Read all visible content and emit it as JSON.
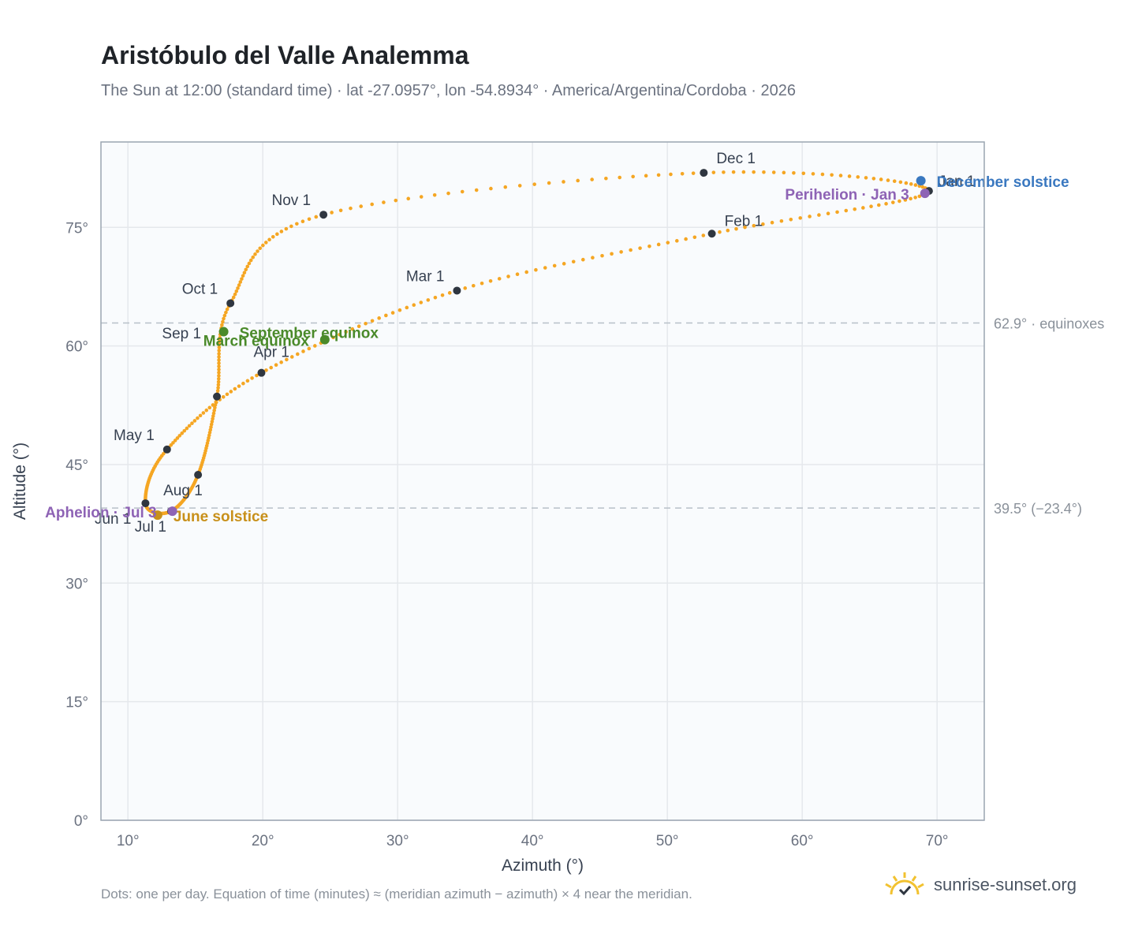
{
  "header": {
    "title": "Aristóbulo del Valle Analemma",
    "subtitle": "The Sun at 12:00 (standard time) · lat -27.0957°, lon -54.8934° · America/Argentina/Cordoba · 2026"
  },
  "footer": {
    "note": "Dots: one per day. Equation of time (minutes) ≈ (meridian azimuth − azimuth) × 4 near the meridian.",
    "brand": "sunrise-sunset.org",
    "brand_icon": "sun-horizon-icon"
  },
  "colors": {
    "curve": "#f5a623",
    "month_marker": "#2f3640",
    "equinox": "#4a8a2a",
    "june_solstice": "#c8901a",
    "december_solstice": "#3a78c0",
    "apsis": "#8e63b5",
    "grid": "#e5e8ec",
    "plot_bg": "#f9fbfd",
    "frame": "#9aa5b1",
    "reference_line": "#b8c0c8"
  },
  "chart_data": {
    "type": "scatter",
    "title": "Aristóbulo del Valle Analemma",
    "xlabel": "Azimuth (°)",
    "ylabel": "Altitude (°)",
    "xlim": [
      8,
      73.5
    ],
    "ylim": [
      0,
      85.8
    ],
    "x_ticks": [
      10,
      20,
      30,
      40,
      50,
      60,
      70
    ],
    "x_tick_labels": [
      "10°",
      "20°",
      "30°",
      "40°",
      "50°",
      "60°",
      "70°"
    ],
    "y_ticks": [
      0,
      15,
      30,
      45,
      60,
      75
    ],
    "y_tick_labels": [
      "0°",
      "15°",
      "30°",
      "45°",
      "60°",
      "75°"
    ],
    "grid": true,
    "legend": "none",
    "month_markers": [
      {
        "label": "Jan 1",
        "date": "2026-01-01",
        "x": 69.4,
        "y": 79.6
      },
      {
        "label": "Feb 1",
        "date": "2026-02-01",
        "x": 53.3,
        "y": 74.2
      },
      {
        "label": "Mar 1",
        "date": "2026-03-01",
        "x": 34.4,
        "y": 67.0
      },
      {
        "label": "Apr 1",
        "date": "2026-04-01",
        "x": 19.9,
        "y": 56.6
      },
      {
        "label": "May 1",
        "date": "2026-05-01",
        "x": 12.9,
        "y": 46.9
      },
      {
        "label": "Jun 1",
        "date": "2026-06-01",
        "x": 11.3,
        "y": 40.1
      },
      {
        "label": "Jul 1",
        "date": "2026-07-01",
        "x": 13.2,
        "y": 39.1
      },
      {
        "label": "Aug 1",
        "date": "2026-08-01",
        "x": 15.2,
        "y": 43.7
      },
      {
        "label": "Sep 1",
        "date": "2026-09-01",
        "x": 16.6,
        "y": 53.6
      },
      {
        "label": "Oct 1",
        "date": "2026-10-01",
        "x": 17.6,
        "y": 65.4
      },
      {
        "label": "Nov 1",
        "date": "2026-11-01",
        "x": 24.5,
        "y": 76.6
      },
      {
        "label": "Dec 1",
        "date": "2026-12-01",
        "x": 52.7,
        "y": 81.9
      }
    ],
    "events": [
      {
        "label": "March equinox",
        "date": "2026-03-20",
        "x": 24.6,
        "y": 60.8,
        "kind": "equinox"
      },
      {
        "label": "June solstice",
        "date": "2026-06-21",
        "x": 12.2,
        "y": 38.6,
        "kind": "june_solstice"
      },
      {
        "label": "September equinox",
        "date": "2026-09-23",
        "x": 17.1,
        "y": 61.8,
        "kind": "equinox"
      },
      {
        "label": "December solstice",
        "date": "2026-12-21",
        "x": 68.8,
        "y": 80.9,
        "kind": "december_solstice"
      },
      {
        "label": "Perihelion · Jan 3",
        "date": "2026-01-03",
        "x": 69.1,
        "y": 79.3,
        "kind": "apsis"
      },
      {
        "label": "Aphelion · Jul 3",
        "date": "2026-07-03",
        "x": 13.3,
        "y": 39.1,
        "kind": "apsis"
      }
    ],
    "reference_lines": [
      {
        "y": 62.9,
        "label": "62.9° · equinoxes"
      },
      {
        "y": 39.5,
        "label": "39.5° (−23.4°)"
      }
    ],
    "daily_points_count": 365
  }
}
